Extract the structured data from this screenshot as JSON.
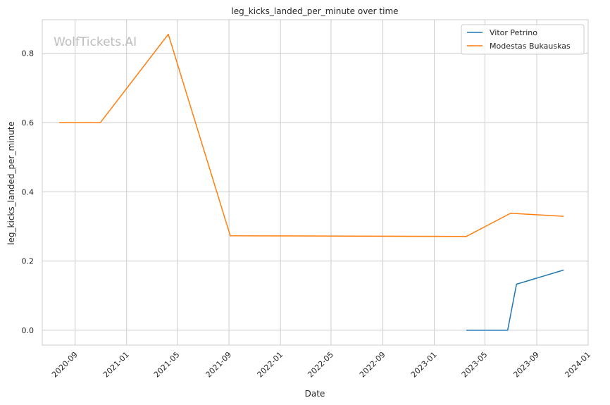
{
  "chart_data": {
    "type": "line",
    "title": "leg_kicks_landed_per_minute over time",
    "xlabel": "Date",
    "ylabel": "leg_kicks_landed_per_minute",
    "watermark": "WolfTickets.AI",
    "x_ticks": [
      "2020-09",
      "2021-01",
      "2021-05",
      "2021-09",
      "2022-01",
      "2022-05",
      "2022-09",
      "2023-01",
      "2023-05",
      "2023-09",
      "2024-01"
    ],
    "y_ticks": [
      "0.0",
      "0.2",
      "0.4",
      "0.6",
      "0.8"
    ],
    "xlim": [
      "2020-06-15",
      "2024-01-01"
    ],
    "ylim": [
      -0.043,
      0.897
    ],
    "grid": true,
    "legend_position": "top-right",
    "series": [
      {
        "name": "Vitor Petrino",
        "color": "#1f77b4",
        "points": [
          {
            "x": "2023-03-18",
            "y": 0.0
          },
          {
            "x": "2023-06-24",
            "y": 0.0
          },
          {
            "x": "2023-07-15",
            "y": 0.133
          },
          {
            "x": "2023-11-04",
            "y": 0.174
          }
        ]
      },
      {
        "name": "Modestas Bukauskas",
        "color": "#ff7f0e",
        "points": [
          {
            "x": "2020-07-25",
            "y": 0.6
          },
          {
            "x": "2020-10-31",
            "y": 0.6
          },
          {
            "x": "2021-04-10",
            "y": 0.855
          },
          {
            "x": "2021-09-04",
            "y": 0.273
          },
          {
            "x": "2023-03-18",
            "y": 0.271
          },
          {
            "x": "2023-07-01",
            "y": 0.338
          },
          {
            "x": "2023-11-04",
            "y": 0.329
          }
        ]
      }
    ]
  }
}
